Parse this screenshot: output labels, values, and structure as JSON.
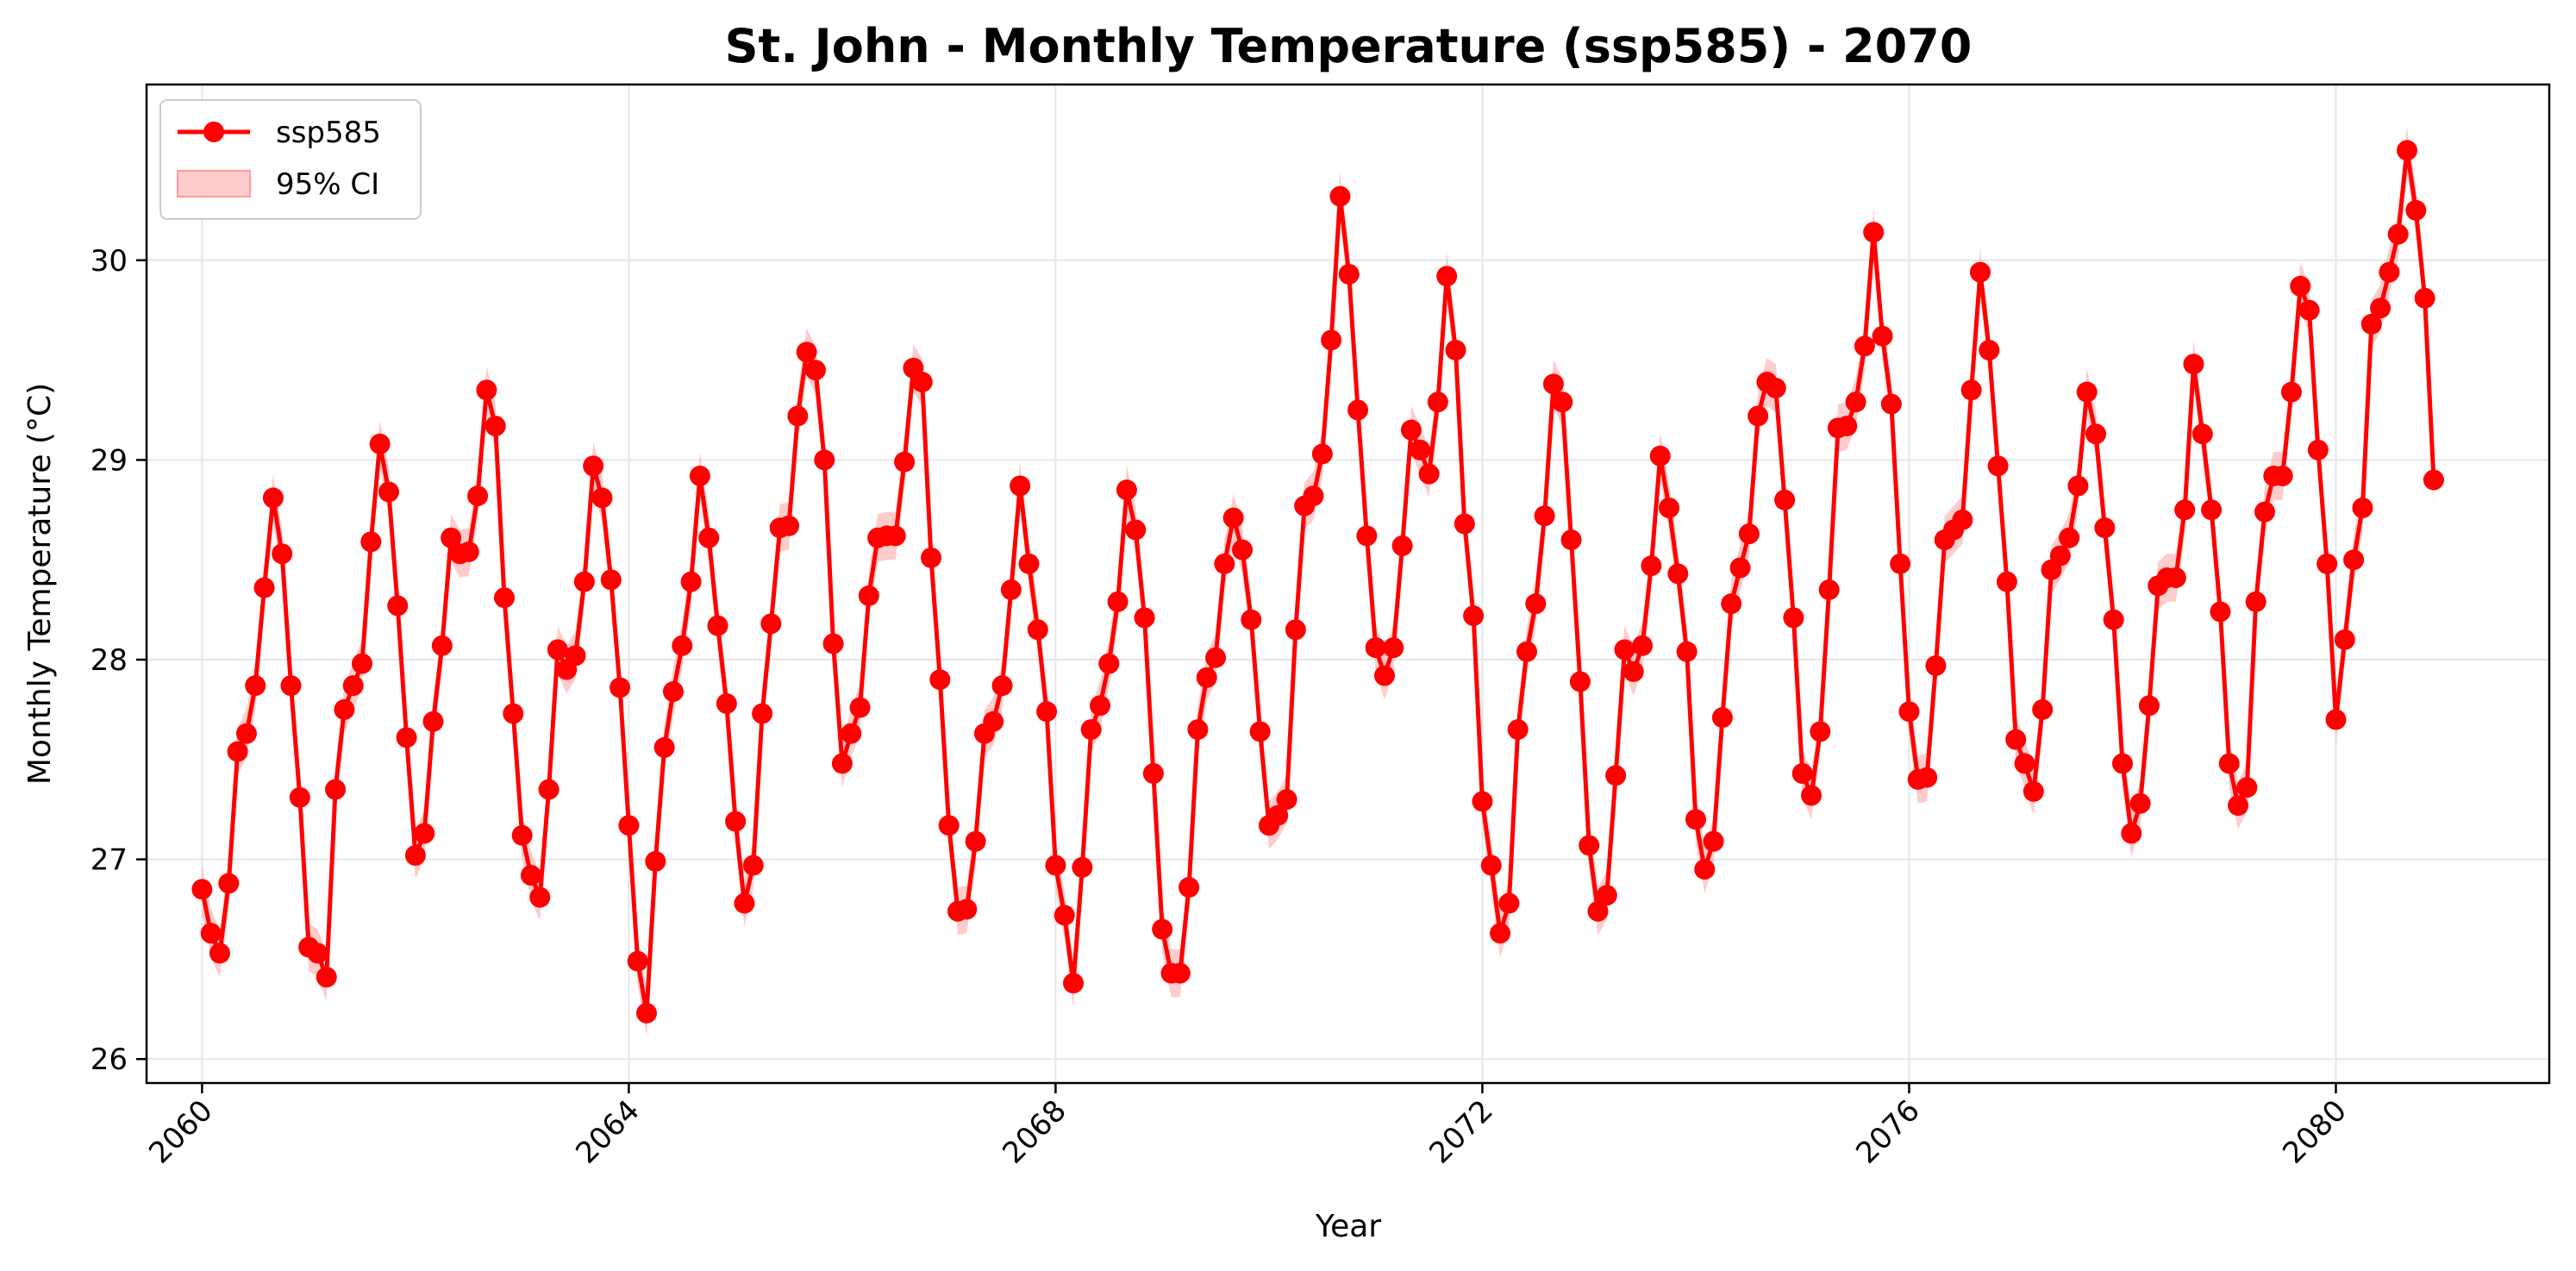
{
  "colors": {
    "series": "#ff0000",
    "ci_fill": "#ffaaaa",
    "grid": "#e6e6e6",
    "axes": "#000000"
  },
  "chart_data": {
    "type": "line",
    "title": "St. John - Monthly Temperature (ssp585) - 2070",
    "xlabel": "Year",
    "ylabel": "Monthly Temperature (°C)",
    "xlim": [
      2059.48,
      2082.0
    ],
    "ylim": [
      25.88,
      30.88
    ],
    "xticks": [
      2060,
      2064,
      2068,
      2072,
      2076,
      2080
    ],
    "xtick_labels": [
      "2060",
      "2064",
      "2068",
      "2072",
      "2076",
      "2080"
    ],
    "yticks": [
      26,
      27,
      28,
      29,
      30
    ],
    "ytick_labels": [
      "26",
      "27",
      "28",
      "29",
      "30"
    ],
    "grid": true,
    "legend_position": "top-left",
    "legend": {
      "series_label": "ssp585",
      "ci_label": "95% CI"
    },
    "x_start": "2060-01",
    "x_step": "1 month",
    "ci_halfwidth": 0.12,
    "series": [
      {
        "name": "ssp585",
        "values": [
          26.85,
          26.63,
          26.53,
          26.88,
          27.54,
          27.63,
          27.87,
          28.36,
          28.81,
          28.53,
          27.87,
          27.31,
          26.56,
          26.53,
          26.41,
          27.35,
          27.75,
          27.87,
          27.98,
          28.59,
          29.08,
          28.84,
          28.27,
          27.61,
          27.02,
          27.13,
          27.69,
          28.07,
          28.61,
          28.53,
          28.54,
          28.82,
          29.35,
          29.17,
          28.31,
          27.73,
          27.12,
          26.92,
          26.81,
          27.35,
          28.05,
          27.95,
          28.02,
          28.39,
          28.97,
          28.81,
          28.4,
          27.86,
          27.17,
          26.49,
          26.23,
          26.99,
          27.56,
          27.84,
          28.07,
          28.39,
          28.92,
          28.61,
          28.17,
          27.78,
          27.19,
          26.78,
          26.97,
          27.73,
          28.18,
          28.66,
          28.67,
          29.22,
          29.54,
          29.45,
          29.0,
          28.08,
          27.48,
          27.63,
          27.76,
          28.32,
          28.61,
          28.62,
          28.62,
          28.99,
          29.46,
          29.39,
          28.51,
          27.9,
          27.17,
          26.74,
          26.75,
          27.09,
          27.63,
          27.69,
          27.87,
          28.35,
          28.87,
          28.48,
          28.15,
          27.74,
          26.97,
          26.72,
          26.38,
          26.96,
          27.65,
          27.77,
          27.98,
          28.29,
          28.85,
          28.65,
          28.21,
          27.43,
          26.65,
          26.43,
          26.43,
          26.86,
          27.65,
          27.91,
          28.01,
          28.48,
          28.71,
          28.55,
          28.2,
          27.64,
          27.17,
          27.22,
          27.3,
          28.15,
          28.77,
          28.82,
          29.03,
          29.6,
          30.32,
          29.93,
          29.25,
          28.62,
          28.06,
          27.92,
          28.06,
          28.57,
          29.15,
          29.05,
          28.93,
          29.29,
          29.92,
          29.55,
          28.68,
          28.22,
          27.29,
          26.97,
          26.63,
          26.78,
          27.65,
          28.04,
          28.28,
          28.72,
          29.38,
          29.29,
          28.6,
          27.89,
          27.07,
          26.74,
          26.82,
          27.42,
          28.05,
          27.94,
          28.07,
          28.47,
          29.02,
          28.76,
          28.43,
          28.04,
          27.2,
          26.95,
          27.09,
          27.71,
          28.28,
          28.46,
          28.63,
          29.22,
          29.39,
          29.36,
          28.8,
          28.21,
          27.43,
          27.32,
          27.64,
          28.35,
          29.16,
          29.17,
          29.29,
          29.57,
          30.14,
          29.62,
          29.28,
          28.48,
          27.74,
          27.4,
          27.41,
          27.97,
          28.6,
          28.65,
          28.7,
          29.35,
          29.94,
          29.55,
          28.97,
          28.39,
          27.6,
          27.48,
          27.34,
          27.75,
          28.45,
          28.52,
          28.61,
          28.87,
          29.34,
          29.13,
          28.66,
          28.2,
          27.48,
          27.13,
          27.28,
          27.77,
          28.37,
          28.41,
          28.41,
          28.75,
          29.48,
          29.13,
          28.75,
          28.24,
          27.48,
          27.27,
          27.36,
          28.29,
          28.74,
          28.92,
          28.92,
          29.34,
          29.87,
          29.75,
          29.05,
          28.48,
          27.7,
          28.1,
          28.5,
          28.76,
          29.68,
          29.76,
          29.94,
          30.13,
          30.55,
          30.25,
          29.81,
          28.9
        ]
      }
    ]
  }
}
